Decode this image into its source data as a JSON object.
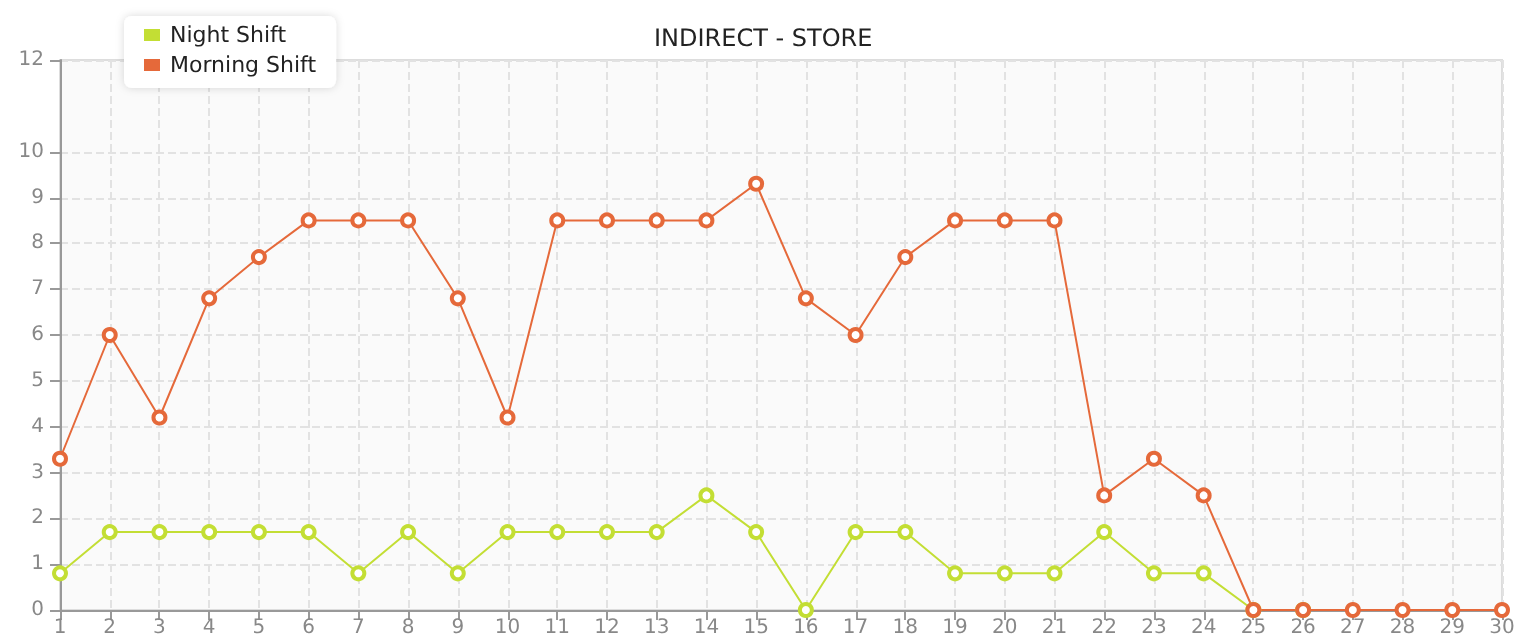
{
  "chart_data": {
    "type": "line",
    "title": "INDIRECT - STORE",
    "x": [
      1,
      2,
      3,
      4,
      5,
      6,
      7,
      8,
      9,
      10,
      11,
      12,
      13,
      14,
      15,
      16,
      17,
      18,
      19,
      20,
      21,
      22,
      23,
      24,
      25,
      26,
      27,
      28,
      29,
      30
    ],
    "xlim": [
      1,
      30
    ],
    "xticks": [
      1,
      2,
      3,
      4,
      5,
      6,
      7,
      8,
      9,
      10,
      11,
      12,
      13,
      14,
      15,
      16,
      17,
      18,
      19,
      20,
      21,
      22,
      23,
      24,
      25,
      26,
      27,
      28,
      29,
      30
    ],
    "ylim": [
      0,
      12
    ],
    "yticks": [
      0,
      1,
      2,
      3,
      4,
      5,
      6,
      7,
      8,
      9,
      10,
      12
    ],
    "series": [
      {
        "name": "Night Shift",
        "color": "#c3de34",
        "values": [
          0.8,
          1.7,
          1.7,
          1.7,
          1.7,
          1.7,
          0.8,
          1.7,
          0.8,
          1.7,
          1.7,
          1.7,
          1.7,
          2.5,
          1.7,
          0,
          1.7,
          1.7,
          0.8,
          0.8,
          0.8,
          1.7,
          0.8,
          0.8,
          0,
          0,
          null,
          null,
          null,
          null
        ]
      },
      {
        "name": "Morning Shift",
        "color": "#e5693a",
        "values": [
          3.3,
          6,
          4.2,
          6.8,
          7.7,
          8.5,
          8.5,
          8.5,
          6.8,
          4.2,
          8.5,
          8.5,
          8.5,
          8.5,
          9.3,
          6.8,
          6,
          7.7,
          8.5,
          8.5,
          8.5,
          2.5,
          3.3,
          2.5,
          0,
          0,
          0,
          0,
          0,
          0
        ]
      }
    ],
    "grid": true,
    "legend": "top left",
    "marker": "circle",
    "line_style": "solid"
  }
}
